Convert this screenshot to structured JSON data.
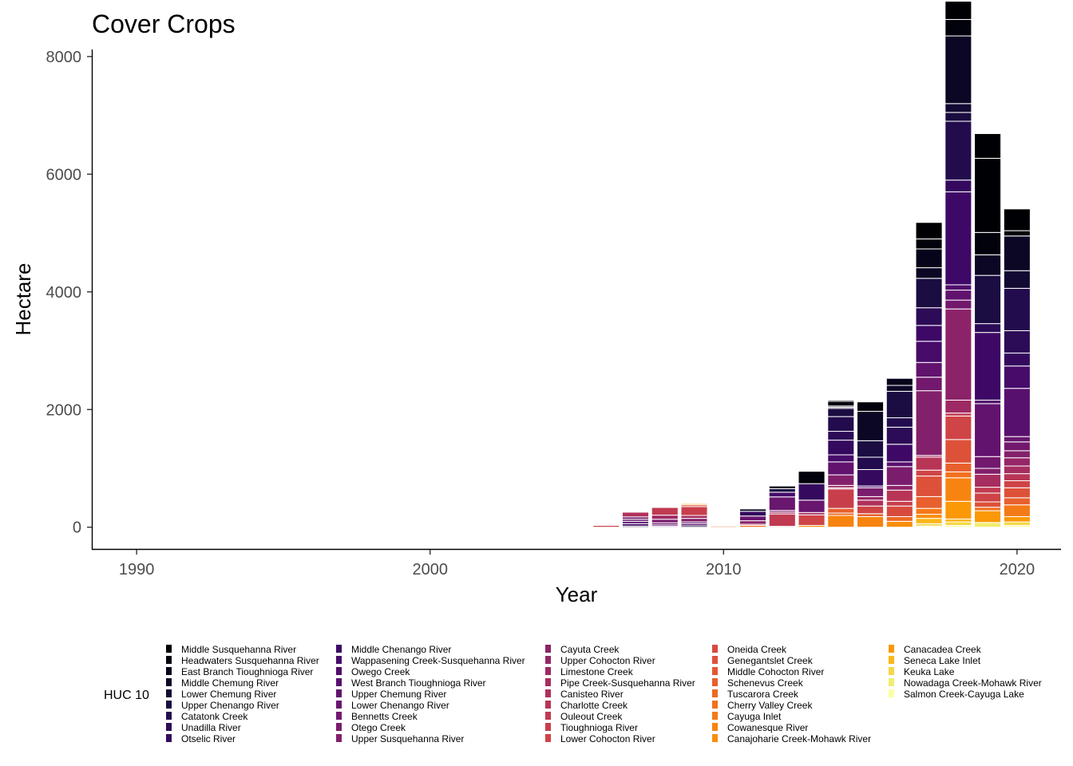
{
  "chart_data": {
    "type": "bar",
    "stacked": true,
    "title": "Cover Crops",
    "xlabel": "Year",
    "ylabel": "Hectare",
    "xlim": [
      1988.5,
      2021.5
    ],
    "ylim": [
      -370,
      8120
    ],
    "x_ticks": [
      1990,
      2000,
      2010,
      2020
    ],
    "y_ticks": [
      0,
      2000,
      4000,
      6000,
      8000
    ],
    "grid": false,
    "legend_position": "bottom",
    "legend_title": "HUC 10",
    "legend_entries": [
      {
        "name": "Middle Susquehanna River",
        "color": "#000004"
      },
      {
        "name": "Headwaters Susquehanna River",
        "color": "#02020c"
      },
      {
        "name": "East Branch Tioughnioga River",
        "color": "#05041a"
      },
      {
        "name": "Middle Chemung River",
        "color": "#0b0724"
      },
      {
        "name": "Lower Chemung River",
        "color": "#120a32"
      },
      {
        "name": "Upper Chenango River",
        "color": "#1b0c41"
      },
      {
        "name": "Catatonk Creek",
        "color": "#230c4d"
      },
      {
        "name": "Unadilla River",
        "color": "#2c0b57"
      },
      {
        "name": "Otselic River",
        "color": "#350a5e"
      },
      {
        "name": "Middle Chenango River",
        "color": "#3e0966"
      },
      {
        "name": "Wappasening Creek-Susquehanna River",
        "color": "#470b6a"
      },
      {
        "name": "Owego Creek",
        "color": "#500d6c"
      },
      {
        "name": "West Branch Tioughnioga River",
        "color": "#58106e"
      },
      {
        "name": "Upper Chemung River",
        "color": "#61136e"
      },
      {
        "name": "Lower Chenango River",
        "color": "#69166e"
      },
      {
        "name": "Bennetts Creek",
        "color": "#72196e"
      },
      {
        "name": "Otego Creek",
        "color": "#7a1d6d"
      },
      {
        "name": "Upper Susquehanna River",
        "color": "#83206b"
      },
      {
        "name": "Cayuta Creek",
        "color": "#8c2369"
      },
      {
        "name": "Upper Cohocton River",
        "color": "#952667"
      },
      {
        "name": "Limestone Creek",
        "color": "#9e2a63"
      },
      {
        "name": "Pipe Creek-Susquehanna River",
        "color": "#a62d60"
      },
      {
        "name": "Canisteo River",
        "color": "#b0315b"
      },
      {
        "name": "Charlotte Creek",
        "color": "#b83556"
      },
      {
        "name": "Ouleout Creek",
        "color": "#c03a51"
      },
      {
        "name": "Tioughnioga River",
        "color": "#c83f4b"
      },
      {
        "name": "Lower Cohocton River",
        "color": "#cf4446"
      },
      {
        "name": "Oneida Creek",
        "color": "#d74b3f"
      },
      {
        "name": "Genegantslet Creek",
        "color": "#dd5139"
      },
      {
        "name": "Middle Cohocton River",
        "color": "#e35933"
      },
      {
        "name": "Schenevus Creek",
        "color": "#e8602d"
      },
      {
        "name": "Tuscarora Creek",
        "color": "#ed6925"
      },
      {
        "name": "Cherry Valley Creek",
        "color": "#f1711f"
      },
      {
        "name": "Cayuga Inlet",
        "color": "#f47a18"
      },
      {
        "name": "Cowanesque River",
        "color": "#f78410"
      },
      {
        "name": "Canajoharie Creek-Mohawk River",
        "color": "#f98e09"
      },
      {
        "name": "Canacadea Creek",
        "color": "#fa9807"
      },
      {
        "name": "Seneca Lake Inlet",
        "color": "#fbb61a"
      },
      {
        "name": "Keuka Lake",
        "color": "#f6d746"
      },
      {
        "name": "Nowadaga Creek-Mohawk River",
        "color": "#f1ed71"
      },
      {
        "name": "Salmon Creek-Cayuga Lake",
        "color": "#fcffa4"
      }
    ],
    "bars": [
      {
        "x": 2006,
        "segments": [
          [
            26,
            30
          ],
          [
            27,
            15
          ],
          [
            29,
            10
          ]
        ]
      },
      {
        "x": 2007,
        "segments": [
          [
            3,
            20
          ],
          [
            9,
            40
          ],
          [
            12,
            40
          ],
          [
            13,
            35
          ],
          [
            15,
            40
          ],
          [
            22,
            80
          ]
        ]
      },
      {
        "x": 2008,
        "segments": [
          [
            10,
            15
          ],
          [
            12,
            25
          ],
          [
            14,
            35
          ],
          [
            16,
            60
          ],
          [
            20,
            70
          ],
          [
            24,
            130
          ]
        ]
      },
      {
        "x": 2009,
        "segments": [
          [
            4,
            25
          ],
          [
            11,
            35
          ],
          [
            14,
            30
          ],
          [
            17,
            60
          ],
          [
            21,
            50
          ],
          [
            25,
            150
          ],
          [
            28,
            30
          ],
          [
            36,
            20
          ]
        ]
      },
      {
        "x": 2010,
        "segments": [
          [
            30,
            20
          ],
          [
            37,
            10
          ]
        ]
      },
      {
        "x": 2011,
        "segments": [
          [
            32,
            30
          ],
          [
            25,
            20
          ],
          [
            18,
            60
          ],
          [
            14,
            80
          ],
          [
            8,
            80
          ],
          [
            3,
            40
          ]
        ]
      },
      {
        "x": 2012,
        "segments": [
          [
            28,
            15
          ],
          [
            24,
            210
          ],
          [
            21,
            30
          ],
          [
            17,
            30
          ],
          [
            14,
            230
          ],
          [
            10,
            80
          ],
          [
            5,
            60
          ],
          [
            2,
            45
          ]
        ]
      },
      {
        "x": 2013,
        "segments": [
          [
            35,
            30
          ],
          [
            26,
            180
          ],
          [
            21,
            40
          ],
          [
            14,
            210
          ],
          [
            8,
            280
          ],
          [
            1,
            210
          ]
        ]
      },
      {
        "x": 2014,
        "segments": [
          [
            34,
            200
          ],
          [
            31,
            40
          ],
          [
            30,
            80
          ],
          [
            25,
            330
          ],
          [
            22,
            20
          ],
          [
            20,
            40
          ],
          [
            17,
            180
          ],
          [
            13,
            220
          ],
          [
            10,
            120
          ],
          [
            8,
            250
          ],
          [
            7,
            150
          ],
          [
            6,
            250
          ],
          [
            5,
            140
          ],
          [
            3,
            20
          ],
          [
            2,
            20
          ],
          [
            1,
            80
          ],
          [
            0,
            20
          ]
        ]
      },
      {
        "x": 2015,
        "segments": [
          [
            34,
            180
          ],
          [
            30,
            50
          ],
          [
            26,
            130
          ],
          [
            22,
            100
          ],
          [
            19,
            60
          ],
          [
            16,
            150
          ],
          [
            11,
            30
          ],
          [
            8,
            280
          ],
          [
            6,
            210
          ],
          [
            5,
            280
          ],
          [
            3,
            500
          ],
          [
            1,
            160
          ]
        ]
      },
      {
        "x": 2016,
        "segments": [
          [
            35,
            100
          ],
          [
            31,
            80
          ],
          [
            27,
            180
          ],
          [
            25,
            80
          ],
          [
            23,
            190
          ],
          [
            18,
            80
          ],
          [
            16,
            320
          ],
          [
            12,
            80
          ],
          [
            9,
            300
          ],
          [
            7,
            290
          ],
          [
            6,
            160
          ],
          [
            5,
            450
          ],
          [
            3,
            100
          ],
          [
            2,
            120
          ]
        ]
      },
      {
        "x": 2017,
        "segments": [
          [
            40,
            20
          ],
          [
            38,
            40
          ],
          [
            37,
            90
          ],
          [
            35,
            70
          ],
          [
            33,
            100
          ],
          [
            30,
            200
          ],
          [
            28,
            350
          ],
          [
            26,
            100
          ],
          [
            23,
            220
          ],
          [
            20,
            30
          ],
          [
            17,
            1100
          ],
          [
            15,
            230
          ],
          [
            13,
            250
          ],
          [
            10,
            360
          ],
          [
            9,
            270
          ],
          [
            7,
            300
          ],
          [
            5,
            500
          ],
          [
            3,
            180
          ],
          [
            2,
            320
          ],
          [
            1,
            170
          ],
          [
            0,
            280
          ]
        ]
      },
      {
        "x": 2018,
        "segments": [
          [
            40,
            30
          ],
          [
            38,
            60
          ],
          [
            37,
            50
          ],
          [
            36,
            300
          ],
          [
            34,
            400
          ],
          [
            32,
            100
          ],
          [
            30,
            150
          ],
          [
            28,
            400
          ],
          [
            26,
            400
          ],
          [
            24,
            50
          ],
          [
            20,
            220
          ],
          [
            18,
            1550
          ],
          [
            15,
            150
          ],
          [
            13,
            170
          ],
          [
            11,
            90
          ],
          [
            9,
            1580
          ],
          [
            8,
            200
          ],
          [
            6,
            1000
          ],
          [
            5,
            150
          ],
          [
            4,
            150
          ],
          [
            3,
            1150
          ],
          [
            1,
            280
          ],
          [
            0,
            310
          ]
        ]
      },
      {
        "x": 2019,
        "segments": [
          [
            39,
            80
          ],
          [
            36,
            200
          ],
          [
            32,
            60
          ],
          [
            28,
            90
          ],
          [
            26,
            150
          ],
          [
            24,
            100
          ],
          [
            21,
            220
          ],
          [
            17,
            100
          ],
          [
            15,
            200
          ],
          [
            13,
            900
          ],
          [
            11,
            60
          ],
          [
            9,
            1150
          ],
          [
            7,
            150
          ],
          [
            5,
            820
          ],
          [
            3,
            350
          ],
          [
            1,
            380
          ],
          [
            0,
            1260
          ],
          [
            0,
            420
          ]
        ]
      },
      {
        "x": 2020,
        "segments": [
          [
            40,
            30
          ],
          [
            38,
            60
          ],
          [
            36,
            90
          ],
          [
            33,
            200
          ],
          [
            30,
            120
          ],
          [
            28,
            170
          ],
          [
            26,
            120
          ],
          [
            23,
            120
          ],
          [
            21,
            130
          ],
          [
            19,
            140
          ],
          [
            17,
            120
          ],
          [
            15,
            150
          ],
          [
            14,
            90
          ],
          [
            12,
            820
          ],
          [
            10,
            380
          ],
          [
            8,
            220
          ],
          [
            7,
            380
          ],
          [
            6,
            720
          ],
          [
            4,
            300
          ],
          [
            3,
            590
          ],
          [
            1,
            90
          ],
          [
            0,
            370
          ]
        ]
      }
    ]
  }
}
